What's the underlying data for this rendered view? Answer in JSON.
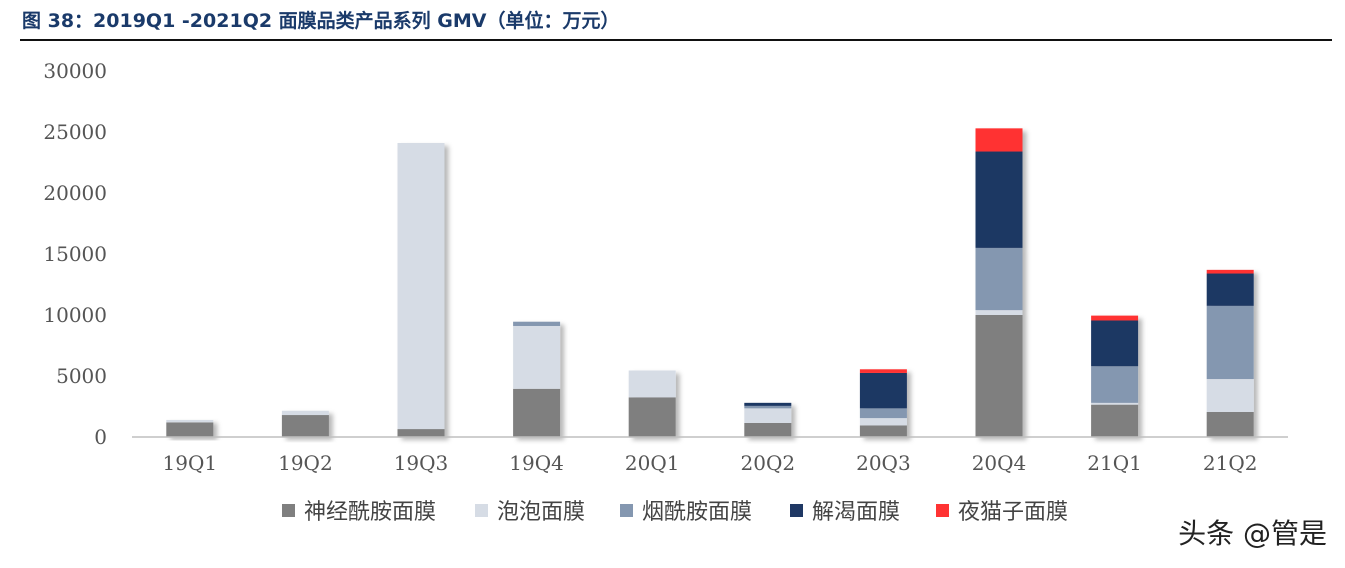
{
  "title": "图 38：2019Q1 -2021Q2 面膜品类产品系列 GMV（单位：万元）",
  "watermark": "头条 @管是",
  "chart_data": {
    "type": "bar",
    "stacked": true,
    "categories": [
      "19Q1",
      "19Q2",
      "19Q3",
      "19Q4",
      "20Q1",
      "20Q2",
      "20Q3",
      "20Q4",
      "21Q1",
      "21Q2"
    ],
    "series": [
      {
        "name": "神经酰胺面膜",
        "color": "#7f7f7f",
        "values": [
          1200,
          1800,
          650,
          3950,
          3250,
          1150,
          950,
          10000,
          2650,
          2050
        ]
      },
      {
        "name": "泡泡面膜",
        "color": "#d6dce5",
        "values": [
          200,
          350,
          23450,
          5150,
          2200,
          1200,
          600,
          400,
          150,
          2700
        ]
      },
      {
        "name": "烟酰胺面膜",
        "color": "#8497b0",
        "values": [
          0,
          0,
          0,
          350,
          0,
          200,
          800,
          5100,
          3000,
          6000
        ]
      },
      {
        "name": "解渴面膜",
        "color": "#1f3864",
        "values": [
          0,
          0,
          0,
          0,
          0,
          250,
          2900,
          7900,
          3750,
          2650
        ]
      },
      {
        "name": "夜猫子面膜",
        "color": "#ff3333",
        "values": [
          0,
          0,
          0,
          0,
          0,
          0,
          300,
          1900,
          400,
          300
        ]
      }
    ],
    "ylim": [
      0,
      30000
    ],
    "yticks": [
      0,
      5000,
      10000,
      15000,
      20000,
      25000,
      30000
    ],
    "xlabel": "",
    "ylabel": "",
    "grid": false,
    "legend": "bottom"
  }
}
